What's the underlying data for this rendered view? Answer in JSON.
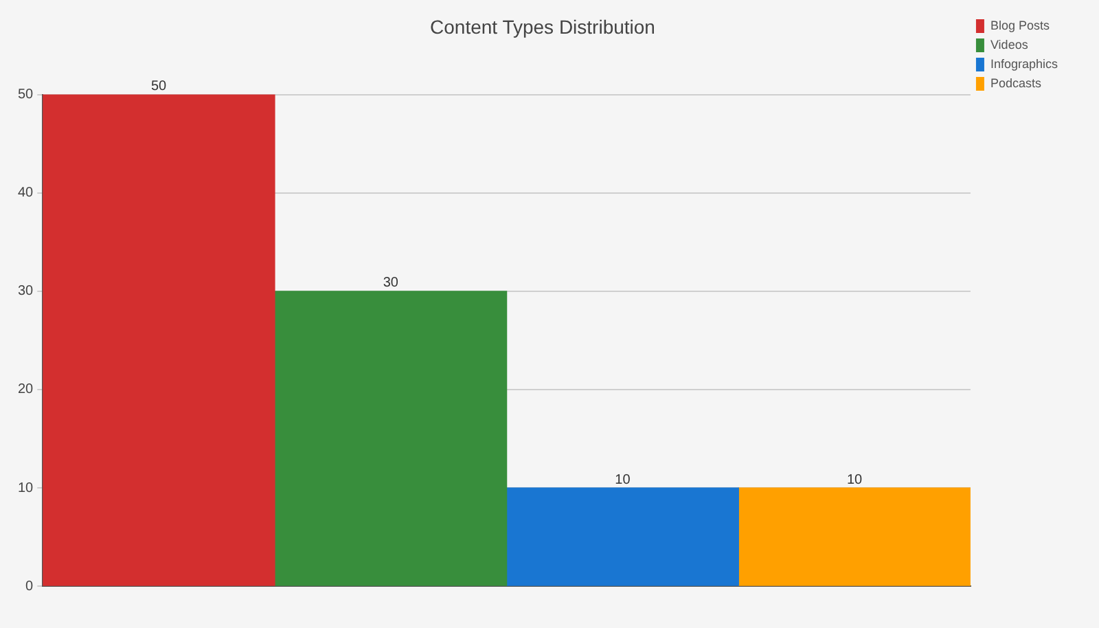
{
  "chart_data": {
    "type": "bar",
    "title": "Content Types Distribution",
    "categories": [
      null
    ],
    "series": [
      {
        "name": "Blog Posts",
        "color": "#d32f2f",
        "values": [
          50
        ]
      },
      {
        "name": "Videos",
        "color": "#388e3c",
        "values": [
          30
        ]
      },
      {
        "name": "Infographics",
        "color": "#1976d2",
        "values": [
          10
        ]
      },
      {
        "name": "Podcasts",
        "color": "#ffa000",
        "values": [
          10
        ]
      }
    ],
    "ylim": [
      0,
      50
    ],
    "yticks": [
      0,
      10,
      20,
      30,
      40,
      50
    ],
    "grid": "y",
    "legend": "right",
    "data_labels": true
  }
}
